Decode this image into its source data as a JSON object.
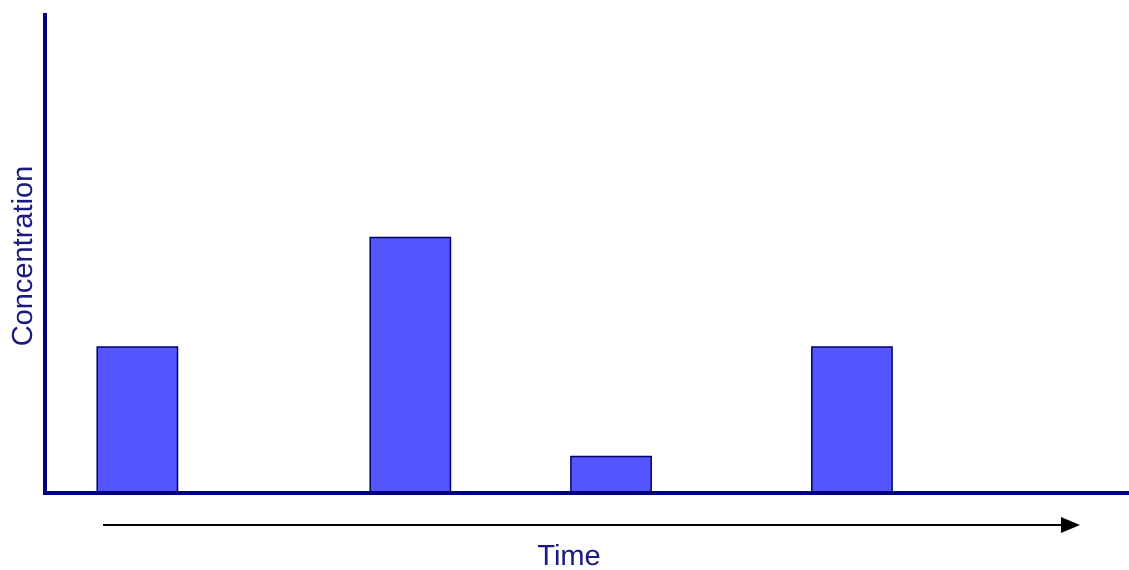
{
  "chart_data": {
    "type": "bar",
    "title": "",
    "xlabel": "Time",
    "ylabel": "Concentration",
    "x": [
      1.15,
      4.55,
      7.05,
      10.05
    ],
    "values": [
      4,
      7,
      1,
      4
    ],
    "xlim": [
      0,
      13.5
    ],
    "ylim": [
      0,
      12
    ],
    "bar_width": 1,
    "grid": false,
    "legend": "none",
    "colors": {
      "bar_fill": "#5555ff",
      "bar_stroke": "#000066",
      "axis": "#000080",
      "label": "#1a1a80",
      "arrow": "#000000"
    }
  }
}
